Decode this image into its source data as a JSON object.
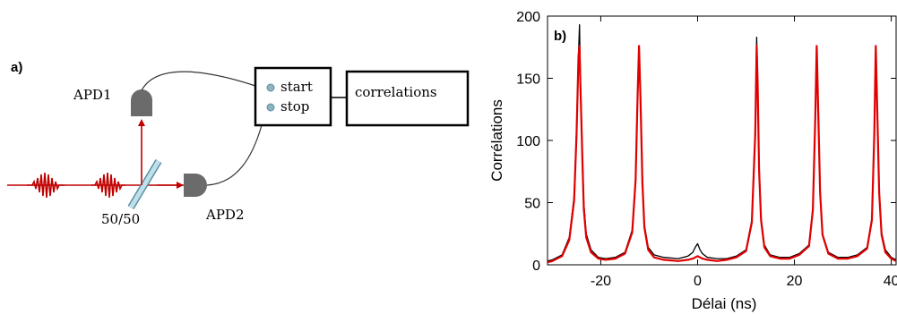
{
  "panel_a": {
    "label": "a)",
    "apd1_label": "APD1",
    "apd2_label": "APD2",
    "splitter_label": "50/50",
    "tdc_start_label": "start",
    "tdc_stop_label": "stop",
    "correlator_label": "correlations",
    "laser_color": "#c00000",
    "detector_color": "#6b6b6b"
  },
  "panel_b": {
    "label": "b)"
  },
  "chart_data": {
    "type": "line",
    "xlabel": "Délai (ns)",
    "ylabel": "Corrélations",
    "xlim": [
      -31,
      41
    ],
    "ylim": [
      0,
      200
    ],
    "xticks": [
      -20,
      0,
      20,
      40
    ],
    "yticks": [
      0,
      50,
      100,
      150,
      200
    ],
    "grid": false,
    "series": [
      {
        "color": "#000000",
        "x": [
          -31,
          -30,
          -28,
          -26.5,
          -25.5,
          -25,
          -24.6,
          -24.4,
          -24.2,
          -23.8,
          -23.5,
          -23,
          -22,
          -20.5,
          -19,
          -17,
          -15,
          -13.5,
          -12.8,
          -12.4,
          -12.1,
          -11.8,
          -11.4,
          -11,
          -10.2,
          -9,
          -7,
          -4,
          -2,
          -1,
          -0.5,
          0,
          0.5,
          1,
          2,
          4,
          6,
          8,
          10,
          11.2,
          11.9,
          12.2,
          12.4,
          12.7,
          13.1,
          13.8,
          15,
          17,
          19,
          21,
          23,
          23.8,
          24.3,
          24.6,
          24.9,
          25.3,
          25.8,
          27,
          29,
          31,
          33,
          35,
          36,
          36.5,
          36.8,
          37.1,
          37.5,
          38,
          38.8,
          40,
          41
        ],
        "values": [
          3,
          4,
          8,
          22,
          55,
          110,
          170,
          193,
          150,
          90,
          50,
          25,
          12,
          6,
          5,
          6,
          10,
          28,
          70,
          140,
          176,
          140,
          70,
          32,
          14,
          8,
          6,
          5,
          7,
          10,
          14,
          17,
          12,
          9,
          6,
          5,
          5,
          7,
          12,
          36,
          110,
          183,
          150,
          80,
          38,
          16,
          8,
          6,
          6,
          9,
          16,
          46,
          120,
          176,
          130,
          60,
          25,
          10,
          6,
          6,
          8,
          14,
          38,
          110,
          176,
          130,
          60,
          26,
          12,
          6,
          4
        ]
      },
      {
        "color": "#e00000",
        "x": [
          -31,
          -30,
          -28,
          -26.5,
          -25.5,
          -25,
          -24.6,
          -24.4,
          -24.2,
          -23.8,
          -23.5,
          -23,
          -22,
          -20.5,
          -19,
          -17,
          -15,
          -13.5,
          -12.8,
          -12.4,
          -12.1,
          -11.8,
          -11.4,
          -11,
          -10.2,
          -9,
          -7,
          -4,
          -2,
          -1,
          -0.5,
          0,
          0.5,
          1,
          2,
          4,
          6,
          8,
          10,
          11.2,
          11.9,
          12.2,
          12.4,
          12.7,
          13.1,
          13.8,
          15,
          17,
          19,
          21,
          23,
          23.8,
          24.3,
          24.6,
          24.9,
          25.3,
          25.8,
          27,
          29,
          31,
          33,
          35,
          36,
          36.5,
          36.8,
          37.1,
          37.5,
          38,
          38.8,
          40,
          41
        ],
        "values": [
          2,
          3,
          7,
          20,
          52,
          105,
          168,
          176,
          145,
          85,
          45,
          22,
          10,
          5,
          4,
          5,
          9,
          26,
          68,
          135,
          176,
          135,
          66,
          30,
          12,
          6,
          4,
          3,
          4,
          5,
          6,
          7,
          6,
          5,
          4,
          3,
          4,
          6,
          11,
          34,
          105,
          176,
          145,
          76,
          36,
          14,
          7,
          5,
          5,
          8,
          15,
          44,
          118,
          176,
          126,
          58,
          24,
          9,
          5,
          5,
          7,
          13,
          36,
          106,
          176,
          126,
          58,
          24,
          10,
          5,
          3
        ]
      }
    ]
  }
}
